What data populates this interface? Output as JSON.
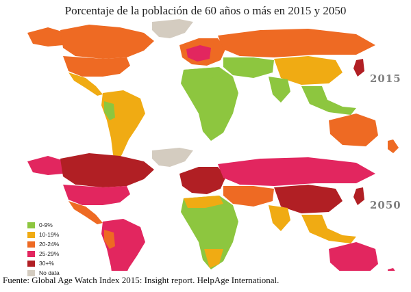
{
  "title": "Porcentaje de la población de 60 años o más en 2015 y 2050",
  "years": {
    "top": "2015",
    "bottom": "2050"
  },
  "legend": [
    {
      "label": "0-9%",
      "color": "#8dc63f"
    },
    {
      "label": "10-19%",
      "color": "#f0ab13"
    },
    {
      "label": "20-24%",
      "color": "#ee6a23"
    },
    {
      "label": "25-29%",
      "color": "#e2265f"
    },
    {
      "label": "30+%",
      "color": "#b11f24"
    },
    {
      "label": "No data",
      "color": "#d4ccc0"
    }
  ],
  "source": "Fuente: Global Age Watch Index 2015: Insight report. HelpAge International."
}
